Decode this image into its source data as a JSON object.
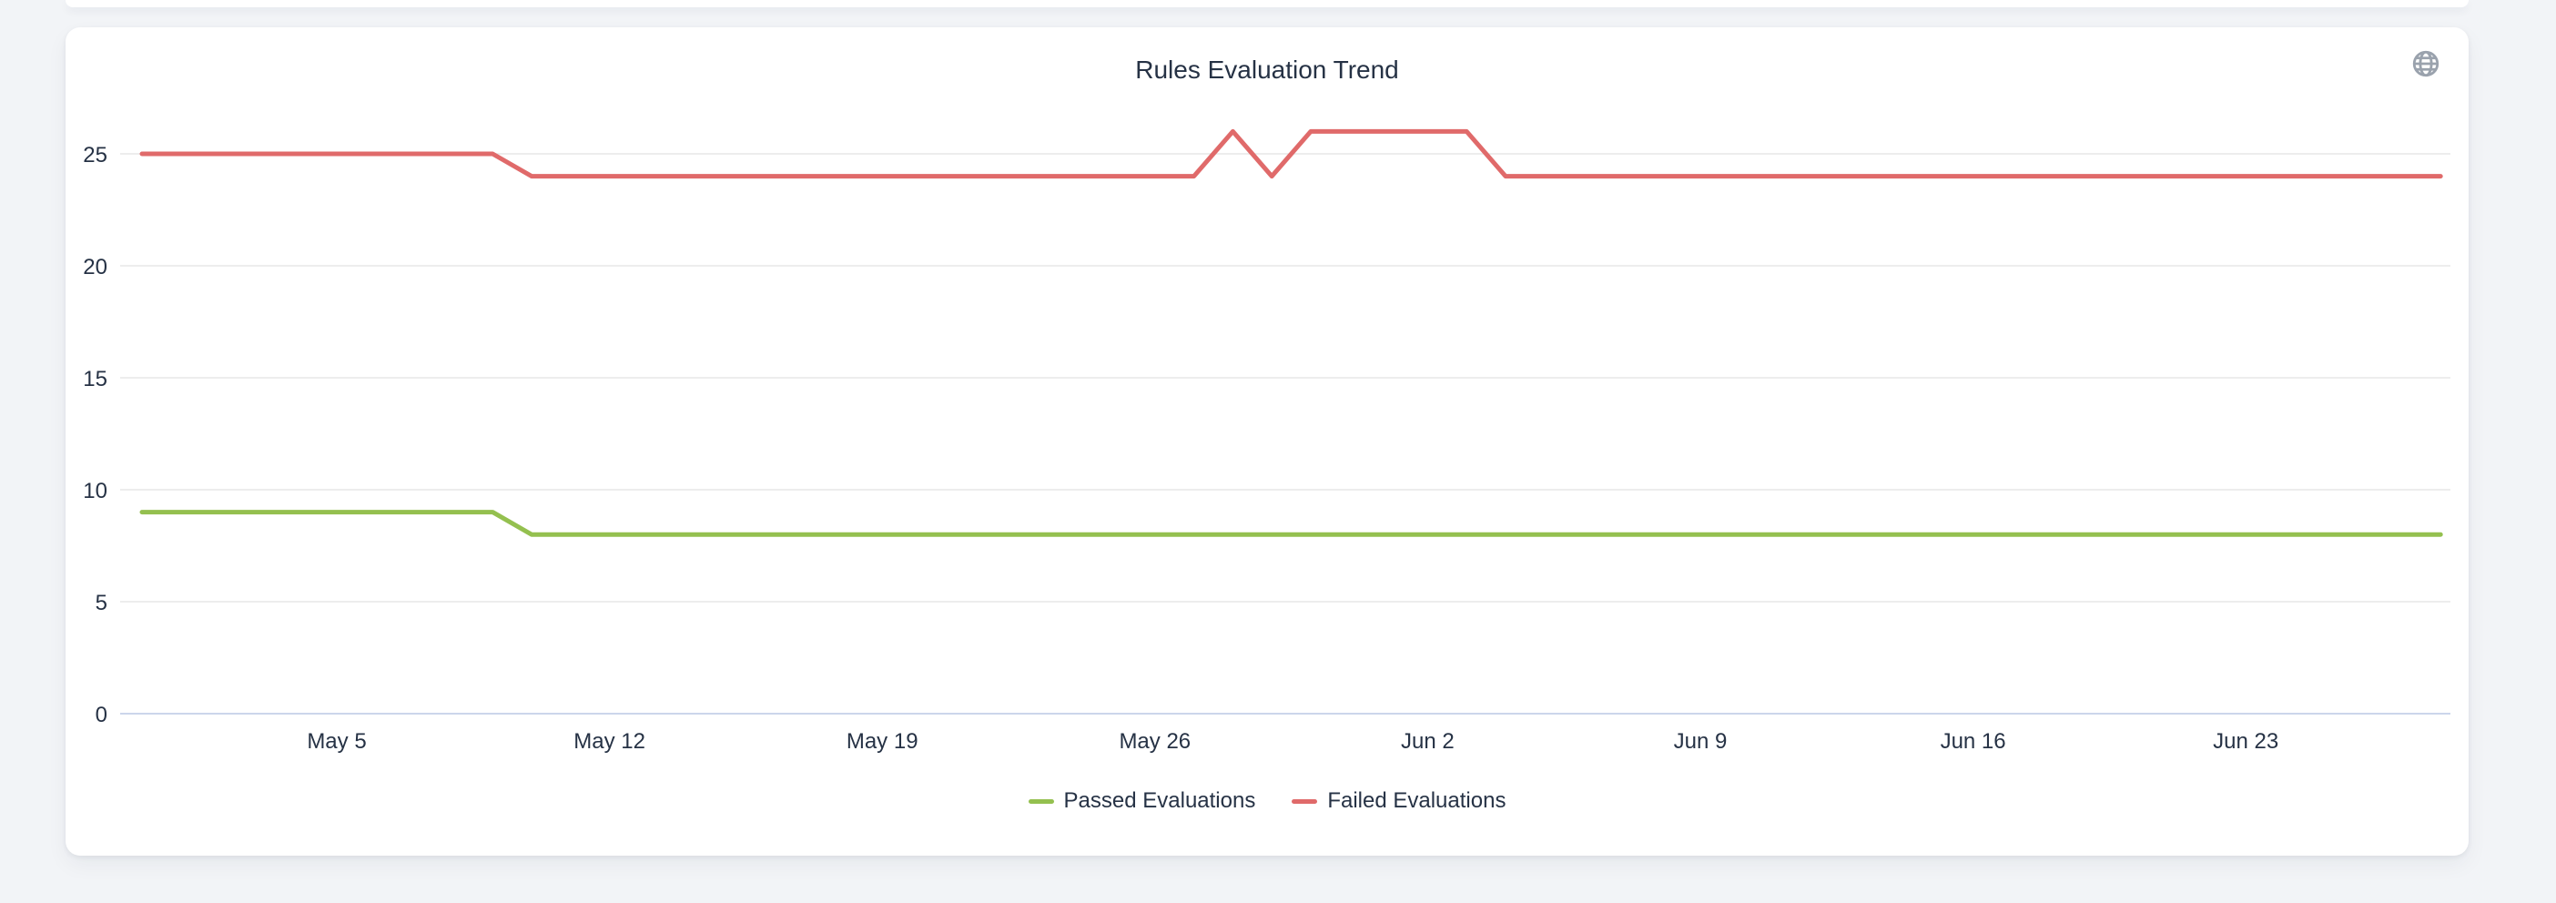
{
  "page": {
    "background_color": "#f2f4f7"
  },
  "card": {
    "background_color": "#ffffff",
    "icon": "globe-icon"
  },
  "chart_data": {
    "type": "line",
    "title": "Rules Evaluation Trend",
    "xlabel": "",
    "ylabel": "",
    "grid": true,
    "legend_position": "bottom",
    "ylim": [
      0,
      27.5
    ],
    "y_ticks": [
      0,
      5,
      10,
      15,
      20,
      25
    ],
    "x_tick_labels": [
      "May 5",
      "May 12",
      "May 19",
      "May 26",
      "Jun 2",
      "Jun 9",
      "Jun 16",
      "Jun 23"
    ],
    "x": [
      "Apr 30",
      "May 1",
      "May 2",
      "May 3",
      "May 4",
      "May 5",
      "May 6",
      "May 7",
      "May 8",
      "May 9",
      "May 10",
      "May 11",
      "May 12",
      "May 13",
      "May 14",
      "May 15",
      "May 16",
      "May 17",
      "May 18",
      "May 19",
      "May 20",
      "May 21",
      "May 22",
      "May 23",
      "May 24",
      "May 25",
      "May 26",
      "May 27",
      "May 28",
      "May 29",
      "May 30",
      "May 31",
      "Jun 1",
      "Jun 2",
      "Jun 3",
      "Jun 4",
      "Jun 5",
      "Jun 6",
      "Jun 7",
      "Jun 8",
      "Jun 9",
      "Jun 10",
      "Jun 11",
      "Jun 12",
      "Jun 13",
      "Jun 14",
      "Jun 15",
      "Jun 16",
      "Jun 17",
      "Jun 18",
      "Jun 19",
      "Jun 20",
      "Jun 21",
      "Jun 22",
      "Jun 23",
      "Jun 24",
      "Jun 25",
      "Jun 26",
      "Jun 27",
      "Jun 28"
    ],
    "series": [
      {
        "key": "passed",
        "name": "Passed Evaluations",
        "color": "#94c04f",
        "values": [
          9,
          9,
          9,
          9,
          9,
          9,
          9,
          9,
          9,
          9,
          8,
          8,
          8,
          8,
          8,
          8,
          8,
          8,
          8,
          8,
          8,
          8,
          8,
          8,
          8,
          8,
          8,
          8,
          8,
          8,
          8,
          8,
          8,
          8,
          8,
          8,
          8,
          8,
          8,
          8,
          8,
          8,
          8,
          8,
          8,
          8,
          8,
          8,
          8,
          8,
          8,
          8,
          8,
          8,
          8,
          8,
          8,
          8,
          8,
          8
        ]
      },
      {
        "key": "failed",
        "name": "Failed Evaluations",
        "color": "#e06a6a",
        "values": [
          25,
          25,
          25,
          25,
          25,
          25,
          25,
          25,
          25,
          25,
          24,
          24,
          24,
          24,
          24,
          24,
          24,
          24,
          24,
          24,
          24,
          24,
          24,
          24,
          24,
          24,
          24,
          24,
          26,
          24,
          26,
          26,
          26,
          26,
          26,
          24,
          24,
          24,
          24,
          24,
          24,
          24,
          24,
          24,
          24,
          24,
          24,
          24,
          24,
          24,
          24,
          24,
          24,
          24,
          24,
          24,
          24,
          24,
          24,
          24
        ]
      }
    ],
    "colors": {
      "grid_line": "#e7e7e7",
      "axis_line": "#ccd6eb",
      "text": "#263245",
      "icon": "#9aa2ad"
    }
  }
}
